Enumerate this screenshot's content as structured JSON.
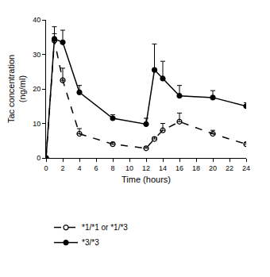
{
  "chart_data": {
    "type": "line",
    "x_label": "Time (hours)",
    "y_label": "Tac concentration (ng/ml)",
    "xlim": [
      0,
      24
    ],
    "xticks": [
      0,
      2,
      4,
      6,
      8,
      10,
      12,
      14,
      16,
      18,
      20,
      22,
      24
    ],
    "ylim": [
      0,
      40
    ],
    "yticks": [
      0,
      10,
      20,
      30,
      40
    ],
    "grid": false,
    "legend": "bottom",
    "series": [
      {
        "name": "*1/*1 or *1/*3",
        "color": "#000000",
        "marker": "circle-open",
        "line_style": "dash",
        "x": [
          0,
          1,
          2,
          4,
          8,
          12,
          13,
          14,
          16,
          20,
          24
        ],
        "values": [
          0,
          34,
          22.5,
          7,
          4,
          2.8,
          5.5,
          8,
          10.5,
          7,
          4
        ],
        "error_plus": [
          0,
          2,
          3.5,
          1.5,
          0.5,
          0.4,
          0.5,
          2,
          2.5,
          1,
          0.5
        ]
      },
      {
        "name": "*3/*3",
        "color": "#000000",
        "marker": "circle",
        "line_style": "solid",
        "x": [
          0,
          1,
          2,
          4,
          8,
          12,
          13,
          14,
          16,
          20,
          24
        ],
        "values": [
          0,
          34.5,
          33.5,
          19,
          11.5,
          9.8,
          25.5,
          23,
          18,
          17.5,
          15
        ],
        "error_plus": [
          0,
          3.5,
          3.5,
          2,
          1,
          1.7,
          7.5,
          5,
          3,
          2,
          1
        ]
      }
    ]
  }
}
